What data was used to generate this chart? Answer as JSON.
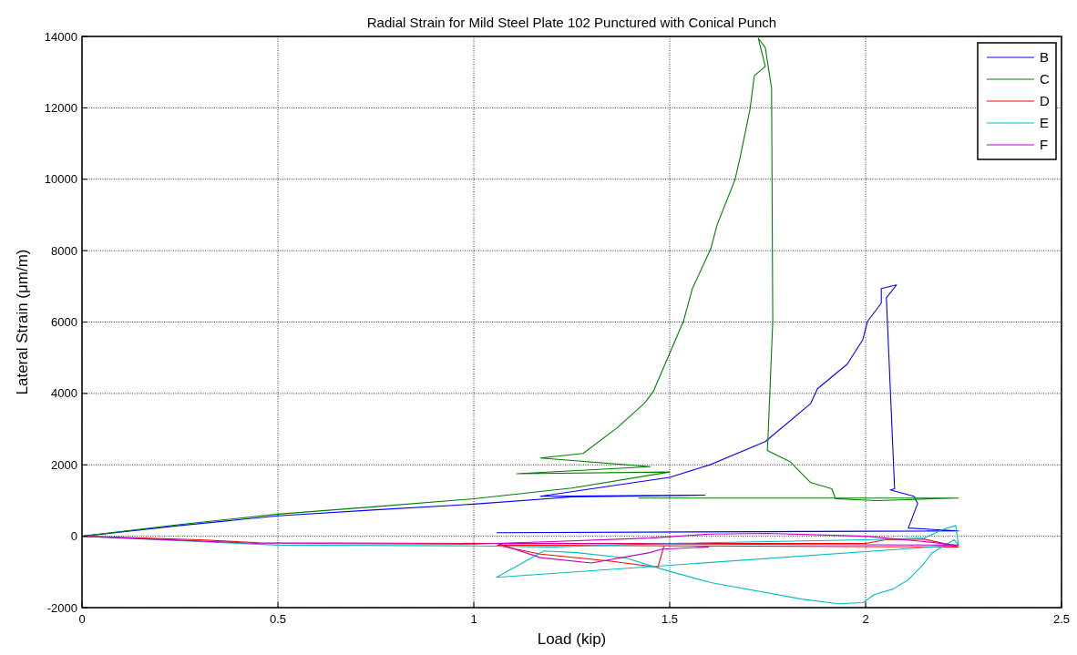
{
  "chart_data": {
    "type": "line",
    "title": "Radial Strain for Mild Steel Plate 102 Punctured with Conical Punch",
    "xlabel": "Load (kip)",
    "ylabel": "Lateral Strain (μm/m)",
    "xlim": [
      0,
      2.5
    ],
    "xticks": [
      0,
      0.5,
      1,
      1.5,
      2,
      2.5
    ],
    "ylim": [
      -2000,
      14000
    ],
    "yticks": [
      -2000,
      0,
      2000,
      4000,
      6000,
      8000,
      10000,
      12000,
      14000
    ],
    "grid": true,
    "legend": "top right",
    "line_style": "solid",
    "series": [
      {
        "name": "B",
        "color": "#0000ff",
        "x": [
          0,
          0.25,
          0.5,
          0.75,
          1.0,
          1.25,
          1.59,
          1.17,
          1.5,
          1.605,
          1.744,
          1.86,
          1.877,
          1.953,
          1.993,
          2.005,
          2.04,
          2.04,
          2.079,
          2.053,
          2.074,
          2.063,
          2.123,
          2.133,
          2.109,
          2.237,
          1.058
        ],
        "values": [
          0,
          300,
          570,
          740,
          900,
          1100,
          1150,
          1120,
          1650,
          2010,
          2650,
          3720,
          4130,
          4820,
          5510,
          6020,
          6530,
          6940,
          7040,
          6680,
          1330,
          1300,
          1120,
          920,
          230,
          150,
          100
        ]
      },
      {
        "name": "C",
        "color": "#008000",
        "x": [
          0,
          0.25,
          0.5,
          0.75,
          1.0,
          1.25,
          1.5,
          1.11,
          1.45,
          1.17,
          1.279,
          1.365,
          1.435,
          1.458,
          1.495,
          1.535,
          1.558,
          1.605,
          1.621,
          1.667,
          1.681,
          1.705,
          1.716,
          1.744,
          1.726,
          1.744,
          1.76,
          1.763,
          1.751,
          1.749,
          1.807,
          1.86,
          1.914,
          1.923,
          2.03,
          2.237,
          1.42
        ],
        "values": [
          0,
          330,
          620,
          830,
          1050,
          1350,
          1800,
          1750,
          1950,
          2190,
          2320,
          3030,
          3720,
          4050,
          5000,
          6020,
          6940,
          8060,
          8720,
          10000,
          10680,
          11960,
          12900,
          13160,
          13950,
          13690,
          12550,
          6020,
          2780,
          2400,
          2090,
          1500,
          1330,
          1050,
          1000,
          1070,
          1070
        ]
      },
      {
        "name": "D",
        "color": "#ff0000",
        "x": [
          0,
          0.3,
          0.45,
          1.0,
          1.2,
          1.6,
          2.0,
          2.05,
          2.15,
          2.237,
          1.06,
          1.17,
          1.35,
          1.47,
          1.485
        ],
        "values": [
          0,
          -100,
          -180,
          -200,
          -200,
          -200,
          -200,
          -100,
          -80,
          -300,
          -250,
          -500,
          -700,
          -870,
          -280
        ]
      },
      {
        "name": "E",
        "color": "#00bfbf",
        "x": [
          0,
          0.3,
          0.5,
          1.0,
          1.2,
          1.5,
          2.0,
          2.15,
          2.2,
          2.23,
          2.237,
          2.226,
          2.17,
          2.147,
          2.109,
          2.07,
          2.023,
          1.993,
          1.93,
          1.837,
          1.605,
          1.495,
          1.388,
          1.263,
          1.179,
          1.058,
          2.237
        ],
        "values": [
          0,
          -150,
          -250,
          -270,
          -300,
          -200,
          -100,
          -50,
          200,
          300,
          -250,
          -100,
          -460,
          -790,
          -1220,
          -1480,
          -1630,
          -1860,
          -1890,
          -1760,
          -1300,
          -970,
          -610,
          -460,
          -410,
          -1150,
          -250
        ]
      },
      {
        "name": "F",
        "color": "#bf00bf",
        "x": [
          0,
          0.45,
          1.0,
          1.2,
          1.45,
          1.6,
          1.75,
          2.0,
          2.15,
          2.237,
          1.06,
          1.17,
          1.3,
          1.449,
          1.48,
          1.6
        ],
        "values": [
          0,
          -200,
          -220,
          -150,
          -50,
          60,
          80,
          0,
          -150,
          -250,
          -200,
          -600,
          -750,
          -460,
          -360,
          -300
        ]
      }
    ]
  }
}
